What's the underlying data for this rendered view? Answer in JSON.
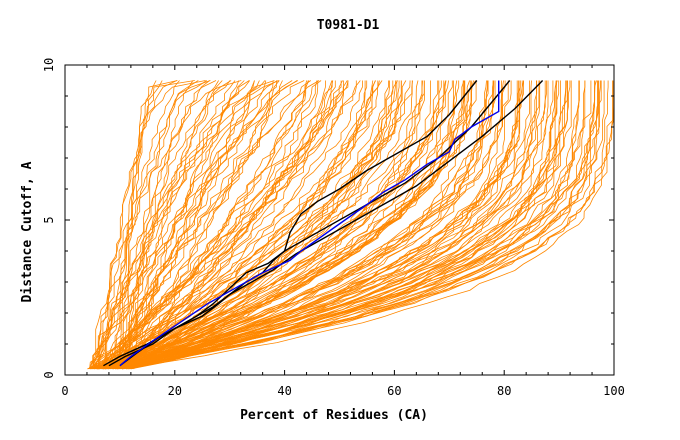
{
  "chart_data": {
    "type": "line",
    "title": "T0981-D1",
    "xlabel": "Percent of Residues (CA)",
    "ylabel": "Distance Cutoff, A",
    "xlim": [
      0,
      100
    ],
    "ylim": [
      0,
      10
    ],
    "x_ticks": [
      0,
      20,
      40,
      60,
      80,
      100
    ],
    "y_ticks": [
      0,
      5,
      10
    ],
    "grid": false,
    "colors": {
      "orange": "#ff8800",
      "blue": "#0000ee",
      "black": "#000000"
    },
    "highlight_series": [
      {
        "color": "#000000",
        "x": [
          7,
          10,
          15,
          20,
          25,
          28,
          30,
          33,
          36,
          38,
          40,
          43,
          48,
          55,
          62,
          68,
          74,
          81
        ],
        "y": [
          0.3,
          0.6,
          1.0,
          1.5,
          1.9,
          2.3,
          2.6,
          3.0,
          3.3,
          3.7,
          4.0,
          4.3,
          4.8,
          5.5,
          6.2,
          7.0,
          8.0,
          9.5
        ]
      },
      {
        "color": "#000000",
        "x": [
          8,
          11,
          16,
          20,
          24,
          27,
          30,
          33,
          37,
          40,
          41,
          43,
          46,
          50,
          55,
          60,
          66,
          70,
          75
        ],
        "y": [
          0.3,
          0.6,
          1.0,
          1.5,
          1.9,
          2.3,
          2.8,
          3.3,
          3.6,
          4.0,
          4.6,
          5.2,
          5.6,
          6.0,
          6.6,
          7.1,
          7.7,
          8.4,
          9.5
        ]
      },
      {
        "color": "#000000",
        "x": [
          10,
          13,
          17,
          22,
          27,
          30,
          34,
          38,
          42,
          47,
          52,
          58,
          64,
          70,
          76,
          82,
          87
        ],
        "y": [
          0.3,
          0.7,
          1.2,
          1.7,
          2.2,
          2.6,
          3.0,
          3.4,
          3.9,
          4.4,
          4.9,
          5.5,
          6.1,
          6.9,
          7.7,
          8.6,
          9.5
        ]
      },
      {
        "color": "#0000ee",
        "x": [
          10,
          12,
          16,
          21,
          26,
          31,
          36,
          41,
          43,
          47,
          51,
          55,
          58,
          62,
          66,
          70,
          71,
          74,
          79,
          79
        ],
        "y": [
          0.3,
          0.6,
          1.1,
          1.7,
          2.3,
          2.8,
          3.3,
          3.7,
          4.0,
          4.5,
          5.0,
          5.5,
          5.9,
          6.3,
          6.8,
          7.2,
          7.6,
          8.0,
          8.5,
          9.5
        ]
      }
    ]
  }
}
